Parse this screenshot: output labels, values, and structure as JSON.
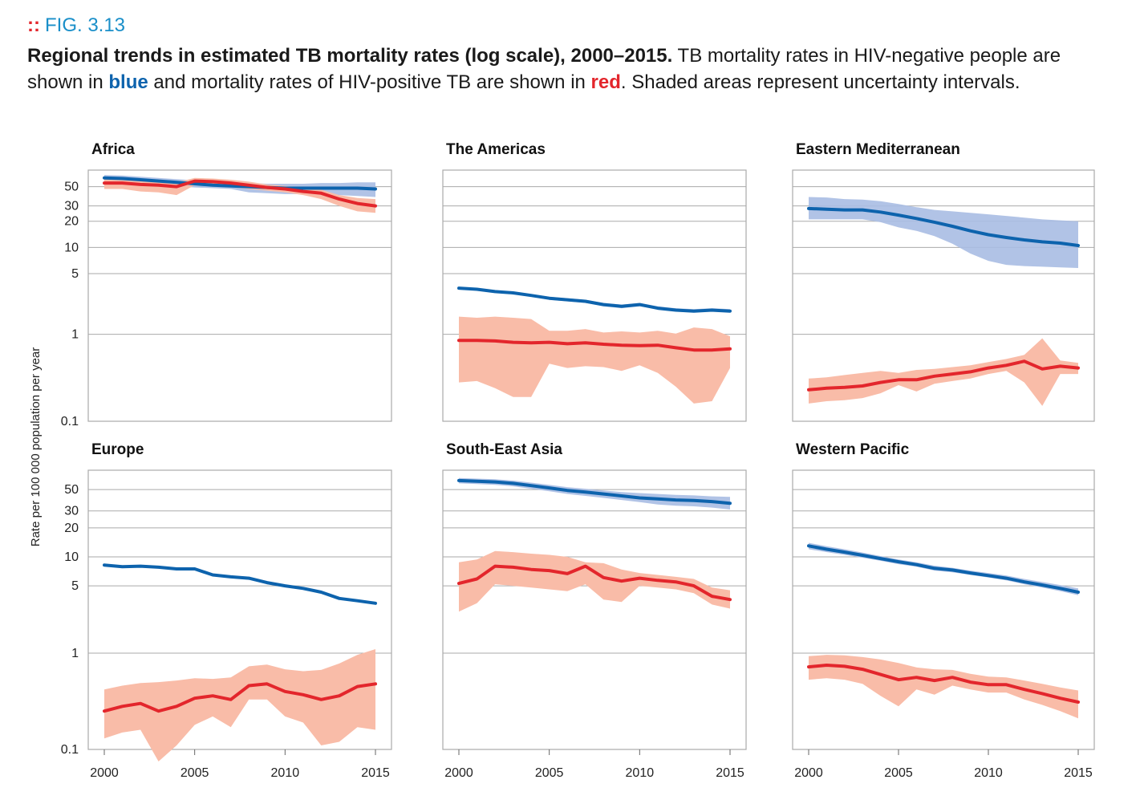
{
  "figure": {
    "label_marker": "::",
    "label": "FIG. 3.13",
    "caption_bold": "Regional trends in estimated TB mortality rates (log scale), 2000–2015.",
    "caption_part1": " TB mortality rates in HIV-negative people are shown in ",
    "caption_blue": "blue",
    "caption_part2": " and mortality rates of HIV-positive TB are shown in ",
    "caption_red": "red",
    "caption_part3": ". Shaded areas represent uncertainty intervals."
  },
  "colors": {
    "hiv_negative_line": "#0d63ad",
    "hiv_negative_band": "#a9bde3",
    "hiv_positive_line": "#e3262c",
    "hiv_positive_band": "#f9bca8",
    "grid": "#aaaaaa"
  },
  "chart_data": [
    {
      "type": "line",
      "title": "Africa",
      "xlabel": "",
      "ylabel": "Rate per 100 000 population per year",
      "yscale": "log",
      "ylim": [
        0.1,
        100
      ],
      "yticks": [
        0.1,
        1,
        5,
        10,
        20,
        30,
        50
      ],
      "xticks": [
        2000,
        2005,
        2010,
        2015
      ],
      "xlim": [
        2000,
        2015
      ],
      "x": [
        2000,
        2001,
        2002,
        2003,
        2004,
        2005,
        2006,
        2007,
        2008,
        2009,
        2010,
        2011,
        2012,
        2013,
        2014,
        2015
      ],
      "series": [
        {
          "values": [
            63,
            62,
            60,
            58,
            56,
            54,
            52,
            51,
            50,
            49,
            48,
            48,
            48,
            48,
            48,
            47
          ],
          "lower": [
            58,
            57,
            55,
            53,
            51,
            49,
            48,
            47,
            43,
            42,
            41,
            41,
            41,
            40,
            39,
            38
          ],
          "upper": [
            68,
            67,
            65,
            63,
            61,
            59,
            57,
            56,
            55,
            54,
            54,
            54,
            55,
            55,
            56,
            56
          ]
        },
        {
          "values": [
            55,
            55,
            53,
            52,
            50,
            58,
            57,
            55,
            52,
            49,
            47,
            44,
            42,
            36,
            32,
            30
          ],
          "lower": [
            47,
            47,
            44,
            43,
            40,
            52,
            52,
            50,
            47,
            45,
            43,
            40,
            36,
            30,
            26,
            25
          ],
          "upper": [
            62,
            61,
            59,
            57,
            56,
            63,
            62,
            60,
            57,
            53,
            51,
            48,
            46,
            40,
            37,
            36
          ]
        }
      ]
    },
    {
      "type": "line",
      "title": "The Americas",
      "xlabel": "",
      "ylabel": "",
      "yscale": "log",
      "ylim": [
        0.1,
        100
      ],
      "yticks": [
        0.1,
        1,
        5,
        10,
        20,
        30,
        50
      ],
      "xticks": [
        2000,
        2005,
        2010,
        2015
      ],
      "xlim": [
        2000,
        2015
      ],
      "x": [
        2000,
        2001,
        2002,
        2003,
        2004,
        2005,
        2006,
        2007,
        2008,
        2009,
        2010,
        2011,
        2012,
        2013,
        2014,
        2015
      ],
      "series": [
        {
          "values": [
            3.4,
            3.3,
            3.1,
            3.0,
            2.8,
            2.6,
            2.5,
            2.4,
            2.2,
            2.1,
            2.2,
            2.0,
            1.9,
            1.85,
            1.9,
            1.85
          ],
          "lower": [
            3.3,
            3.2,
            3.0,
            2.9,
            2.7,
            2.5,
            2.4,
            2.3,
            2.1,
            2.0,
            2.1,
            1.95,
            1.85,
            1.8,
            1.85,
            1.8
          ],
          "upper": [
            3.5,
            3.4,
            3.2,
            3.1,
            2.9,
            2.7,
            2.6,
            2.5,
            2.3,
            2.2,
            2.3,
            2.1,
            2.0,
            1.95,
            2.0,
            1.95
          ]
        },
        {
          "values": [
            0.85,
            0.85,
            0.84,
            0.81,
            0.8,
            0.81,
            0.78,
            0.8,
            0.77,
            0.75,
            0.74,
            0.75,
            0.7,
            0.66,
            0.66,
            0.68
          ],
          "lower": [
            0.28,
            0.29,
            0.24,
            0.19,
            0.19,
            0.46,
            0.41,
            0.43,
            0.42,
            0.38,
            0.44,
            0.36,
            0.25,
            0.16,
            0.17,
            0.41
          ],
          "upper": [
            1.6,
            1.55,
            1.6,
            1.55,
            1.5,
            1.1,
            1.1,
            1.15,
            1.05,
            1.08,
            1.05,
            1.1,
            1.02,
            1.2,
            1.15,
            0.95
          ]
        }
      ]
    },
    {
      "type": "line",
      "title": "Eastern Mediterranean",
      "xlabel": "",
      "ylabel": "",
      "yscale": "log",
      "ylim": [
        0.1,
        100
      ],
      "yticks": [
        0.1,
        1,
        5,
        10,
        20,
        30,
        50
      ],
      "xticks": [
        2000,
        2005,
        2010,
        2015
      ],
      "xlim": [
        2000,
        2015
      ],
      "x": [
        2000,
        2001,
        2002,
        2003,
        2004,
        2005,
        2006,
        2007,
        2008,
        2009,
        2010,
        2011,
        2012,
        2013,
        2014,
        2015
      ],
      "series": [
        {
          "values": [
            28,
            27.5,
            27,
            27,
            25.5,
            23.5,
            21.5,
            19.5,
            17.5,
            15.5,
            14,
            13,
            12.2,
            11.6,
            11.2,
            10.5
          ],
          "lower": [
            21,
            21,
            21,
            21,
            19.5,
            17,
            15.5,
            13.5,
            11,
            8.5,
            7,
            6.3,
            6.1,
            6.0,
            5.9,
            5.8
          ],
          "upper": [
            38,
            37.5,
            36,
            35.5,
            34,
            31.5,
            29,
            27,
            26,
            25,
            24,
            23,
            22,
            21,
            20.5,
            20
          ]
        },
        {
          "values": [
            0.23,
            0.24,
            0.245,
            0.255,
            0.28,
            0.3,
            0.3,
            0.33,
            0.35,
            0.37,
            0.41,
            0.44,
            0.49,
            0.4,
            0.43,
            0.41
          ],
          "lower": [
            0.16,
            0.17,
            0.175,
            0.185,
            0.21,
            0.26,
            0.22,
            0.27,
            0.29,
            0.31,
            0.35,
            0.38,
            0.28,
            0.15,
            0.35,
            0.35
          ],
          "upper": [
            0.31,
            0.32,
            0.34,
            0.36,
            0.38,
            0.36,
            0.39,
            0.4,
            0.42,
            0.44,
            0.48,
            0.52,
            0.58,
            0.9,
            0.5,
            0.47
          ]
        }
      ]
    },
    {
      "type": "line",
      "title": "Europe",
      "xlabel": "",
      "ylabel": "",
      "yscale": "log",
      "ylim": [
        0.1,
        100
      ],
      "yticks": [
        0.1,
        1,
        5,
        10,
        20,
        30,
        50
      ],
      "xticks": [
        2000,
        2005,
        2010,
        2015
      ],
      "xlim": [
        2000,
        2015
      ],
      "x": [
        2000,
        2001,
        2002,
        2003,
        2004,
        2005,
        2006,
        2007,
        2008,
        2009,
        2010,
        2011,
        2012,
        2013,
        2014,
        2015
      ],
      "series": [
        {
          "values": [
            8.2,
            7.9,
            8.0,
            7.8,
            7.5,
            7.5,
            6.5,
            6.2,
            6.0,
            5.4,
            5.0,
            4.7,
            4.3,
            3.7,
            3.5,
            3.3
          ],
          "lower": [
            8.0,
            7.7,
            7.8,
            7.6,
            7.3,
            7.3,
            6.3,
            6.0,
            5.8,
            5.2,
            4.85,
            4.55,
            4.15,
            3.6,
            3.4,
            3.2
          ],
          "upper": [
            8.4,
            8.1,
            8.2,
            8.0,
            7.7,
            7.7,
            6.7,
            6.4,
            6.2,
            5.6,
            5.15,
            4.85,
            4.45,
            3.8,
            3.6,
            3.4
          ]
        },
        {
          "values": [
            0.25,
            0.28,
            0.3,
            0.25,
            0.28,
            0.34,
            0.36,
            0.33,
            0.46,
            0.48,
            0.4,
            0.37,
            0.33,
            0.36,
            0.45,
            0.48
          ],
          "lower": [
            0.13,
            0.15,
            0.16,
            0.075,
            0.11,
            0.18,
            0.22,
            0.17,
            0.33,
            0.33,
            0.22,
            0.19,
            0.11,
            0.12,
            0.17,
            0.16
          ],
          "upper": [
            0.42,
            0.46,
            0.49,
            0.5,
            0.52,
            0.55,
            0.54,
            0.56,
            0.73,
            0.76,
            0.68,
            0.65,
            0.67,
            0.78,
            0.96,
            1.1
          ]
        }
      ]
    },
    {
      "type": "line",
      "title": "South-East Asia",
      "xlabel": "",
      "ylabel": "",
      "yscale": "log",
      "ylim": [
        0.1,
        100
      ],
      "yticks": [
        0.1,
        1,
        5,
        10,
        20,
        30,
        50
      ],
      "xticks": [
        2000,
        2005,
        2010,
        2015
      ],
      "xlim": [
        2000,
        2015
      ],
      "x": [
        2000,
        2001,
        2002,
        2003,
        2004,
        2005,
        2006,
        2007,
        2008,
        2009,
        2010,
        2011,
        2012,
        2013,
        2014,
        2015
      ],
      "series": [
        {
          "values": [
            62,
            61,
            60,
            58,
            55,
            52,
            49,
            47,
            45,
            43,
            41,
            40,
            39,
            38.5,
            37.5,
            36
          ],
          "lower": [
            58,
            57,
            56,
            54,
            51,
            48,
            45,
            43,
            41,
            39,
            37,
            35,
            34,
            33.5,
            32.5,
            31
          ],
          "upper": [
            66,
            65,
            64,
            62,
            59,
            56,
            53,
            51,
            49,
            47,
            46,
            45,
            44,
            43.5,
            42.5,
            42
          ]
        },
        {
          "values": [
            5.3,
            5.9,
            8.0,
            7.8,
            7.4,
            7.2,
            6.7,
            8.0,
            6.1,
            5.6,
            6.0,
            5.7,
            5.5,
            5.0,
            3.9,
            3.6
          ],
          "lower": [
            2.7,
            3.3,
            5.2,
            5.0,
            4.8,
            4.6,
            4.4,
            5.2,
            3.6,
            3.4,
            5.0,
            4.8,
            4.6,
            4.2,
            3.2,
            2.9
          ],
          "upper": [
            8.8,
            9.4,
            11.5,
            11.2,
            10.8,
            10.5,
            10.0,
            8.8,
            8.6,
            7.4,
            6.8,
            6.5,
            6.2,
            5.9,
            4.8,
            4.5
          ]
        }
      ]
    },
    {
      "type": "line",
      "title": "Western Pacific",
      "xlabel": "",
      "ylabel": "",
      "yscale": "log",
      "ylim": [
        0.1,
        100
      ],
      "yticks": [
        0.1,
        1,
        5,
        10,
        20,
        30,
        50
      ],
      "xticks": [
        2000,
        2005,
        2010,
        2015
      ],
      "xlim": [
        2000,
        2015
      ],
      "x": [
        2000,
        2001,
        2002,
        2003,
        2004,
        2005,
        2006,
        2007,
        2008,
        2009,
        2010,
        2011,
        2012,
        2013,
        2014,
        2015
      ],
      "series": [
        {
          "values": [
            13,
            12,
            11.2,
            10.4,
            9.6,
            8.9,
            8.3,
            7.6,
            7.3,
            6.8,
            6.4,
            6.0,
            5.5,
            5.1,
            4.7,
            4.3
          ],
          "lower": [
            12,
            11.2,
            10.5,
            9.8,
            9.1,
            8.4,
            7.9,
            7.2,
            6.9,
            6.5,
            6.1,
            5.7,
            5.2,
            4.8,
            4.4,
            4.0
          ],
          "upper": [
            14,
            12.9,
            12.0,
            11.1,
            10.2,
            9.4,
            8.8,
            8.1,
            7.7,
            7.2,
            6.8,
            6.4,
            5.9,
            5.5,
            5.1,
            4.7
          ]
        },
        {
          "values": [
            0.72,
            0.75,
            0.73,
            0.68,
            0.6,
            0.53,
            0.56,
            0.52,
            0.56,
            0.5,
            0.47,
            0.47,
            0.42,
            0.38,
            0.34,
            0.31
          ],
          "lower": [
            0.53,
            0.55,
            0.53,
            0.48,
            0.36,
            0.28,
            0.42,
            0.37,
            0.46,
            0.42,
            0.39,
            0.39,
            0.33,
            0.29,
            0.25,
            0.21
          ],
          "upper": [
            0.93,
            0.96,
            0.95,
            0.91,
            0.86,
            0.79,
            0.71,
            0.68,
            0.67,
            0.61,
            0.57,
            0.56,
            0.52,
            0.48,
            0.44,
            0.41
          ]
        }
      ]
    }
  ]
}
